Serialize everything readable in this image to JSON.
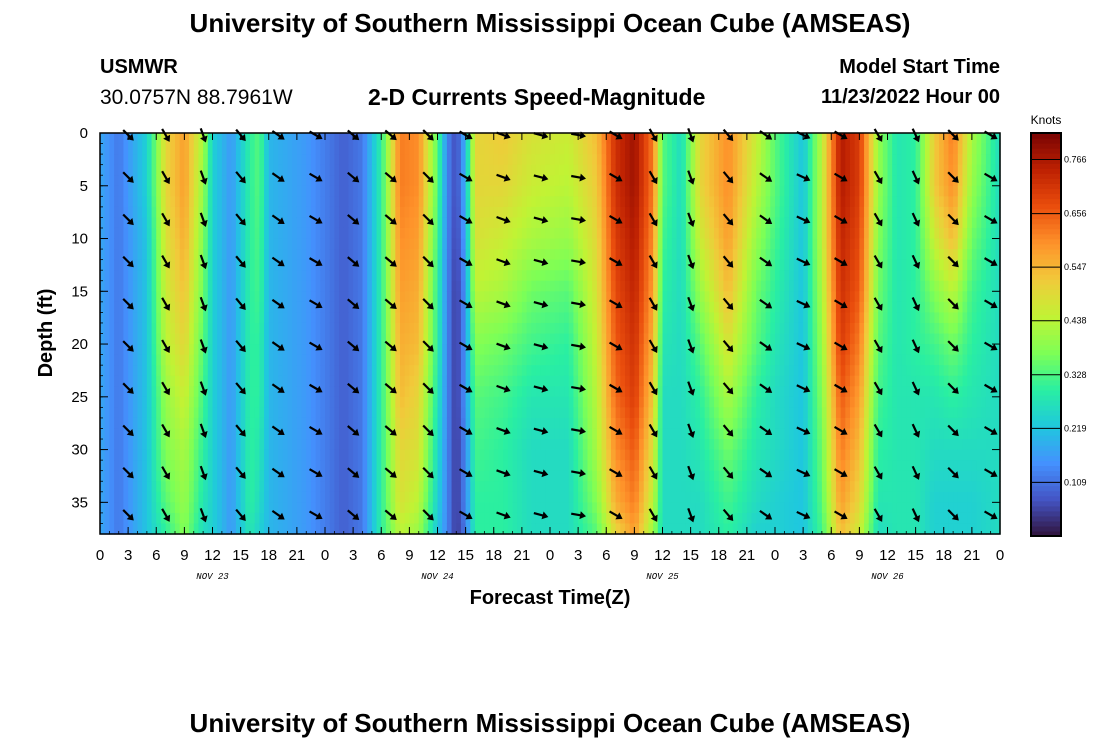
{
  "header": {
    "title": "University of Southern Mississippi Ocean Cube (AMSEAS)",
    "station": "USMWR",
    "coords": "30.0757N  88.7961W",
    "product": "2-D Currents Speed-Magnitude",
    "start_label": "Model Start Time",
    "start_value": "11/23/2022 Hour 00"
  },
  "footer": {
    "title": "University of Southern Mississippi Ocean Cube (AMSEAS)"
  },
  "colors": {
    "scale": [
      "#30123b",
      "#4454c4",
      "#4491fe",
      "#1fc8de",
      "#29efa2",
      "#7dff56",
      "#c1f334",
      "#f1ca3a",
      "#fe922a",
      "#ea4e0d",
      "#be2102",
      "#7a0403"
    ]
  },
  "chart_data": {
    "type": "heatmap",
    "title": "2-D Currents Speed-Magnitude",
    "xlabel": "Forecast Time(Z)",
    "ylabel": "Depth (ft)",
    "units": "Knots",
    "xlim": [
      0,
      96
    ],
    "ylim": [
      38,
      0
    ],
    "x_tick_labels": [
      "0",
      "3",
      "6",
      "9",
      "12",
      "15",
      "18",
      "21",
      "0",
      "3",
      "6",
      "9",
      "12",
      "15",
      "18",
      "21",
      "0",
      "3",
      "6",
      "9",
      "12",
      "15",
      "18",
      "21",
      "0",
      "3",
      "6",
      "9",
      "12",
      "15",
      "18",
      "21",
      "0"
    ],
    "y_ticks": [
      0,
      5,
      10,
      15,
      20,
      25,
      30,
      35
    ],
    "day_labels": [
      {
        "hour": 12,
        "label": "NOV 23"
      },
      {
        "hour": 36,
        "label": "NOV 24"
      },
      {
        "hour": 60,
        "label": "NOV 25"
      },
      {
        "hour": 84,
        "label": "NOV 26"
      }
    ],
    "colorbar": {
      "min": 0.0,
      "max": 0.82,
      "ticks": [
        "0.766",
        "0.656",
        "0.547",
        "0.438",
        "0.328",
        "0.219",
        "0.109"
      ]
    },
    "depths_ft": [
      0,
      5,
      10,
      15,
      20,
      25,
      30,
      35,
      38
    ],
    "speed_profile": [
      {
        "hour": 0,
        "speed": [
          0.18,
          0.18,
          0.18,
          0.18,
          0.18,
          0.18,
          0.18,
          0.18,
          0.18
        ]
      },
      {
        "hour": 2,
        "speed": [
          0.12,
          0.12,
          0.12,
          0.12,
          0.12,
          0.12,
          0.12,
          0.12,
          0.12
        ]
      },
      {
        "hour": 5,
        "speed": [
          0.24,
          0.24,
          0.22,
          0.22,
          0.22,
          0.22,
          0.22,
          0.22,
          0.22
        ]
      },
      {
        "hour": 7,
        "speed": [
          0.5,
          0.5,
          0.48,
          0.46,
          0.44,
          0.4,
          0.38,
          0.34,
          0.3
        ]
      },
      {
        "hour": 9,
        "speed": [
          0.58,
          0.58,
          0.56,
          0.53,
          0.5,
          0.46,
          0.42,
          0.4,
          0.38
        ]
      },
      {
        "hour": 11,
        "speed": [
          0.42,
          0.4,
          0.38,
          0.36,
          0.34,
          0.32,
          0.3,
          0.28,
          0.26
        ]
      },
      {
        "hour": 12,
        "speed": [
          0.24,
          0.24,
          0.24,
          0.24,
          0.24,
          0.24,
          0.24,
          0.24,
          0.24
        ]
      },
      {
        "hour": 14,
        "speed": [
          0.16,
          0.16,
          0.16,
          0.16,
          0.16,
          0.16,
          0.16,
          0.16,
          0.16
        ]
      },
      {
        "hour": 16,
        "speed": [
          0.3,
          0.3,
          0.3,
          0.3,
          0.3,
          0.3,
          0.3,
          0.3,
          0.28
        ]
      },
      {
        "hour": 17,
        "speed": [
          0.34,
          0.34,
          0.33,
          0.32,
          0.3,
          0.3,
          0.28,
          0.26,
          0.24
        ]
      },
      {
        "hour": 18,
        "speed": [
          0.2,
          0.2,
          0.2,
          0.2,
          0.2,
          0.2,
          0.2,
          0.2,
          0.2
        ]
      },
      {
        "hour": 22,
        "speed": [
          0.16,
          0.16,
          0.16,
          0.16,
          0.16,
          0.16,
          0.16,
          0.16,
          0.16
        ]
      },
      {
        "hour": 26,
        "speed": [
          0.09,
          0.09,
          0.09,
          0.09,
          0.09,
          0.09,
          0.09,
          0.09,
          0.09
        ]
      },
      {
        "hour": 28,
        "speed": [
          0.12,
          0.12,
          0.12,
          0.12,
          0.12,
          0.12,
          0.12,
          0.12,
          0.12
        ]
      },
      {
        "hour": 30,
        "speed": [
          0.3,
          0.3,
          0.3,
          0.3,
          0.3,
          0.3,
          0.3,
          0.3,
          0.3
        ]
      },
      {
        "hour": 32,
        "speed": [
          0.62,
          0.62,
          0.6,
          0.58,
          0.56,
          0.54,
          0.5,
          0.48,
          0.44
        ]
      },
      {
        "hour": 34,
        "speed": [
          0.6,
          0.6,
          0.58,
          0.56,
          0.54,
          0.5,
          0.48,
          0.44,
          0.4
        ]
      },
      {
        "hour": 36,
        "speed": [
          0.34,
          0.34,
          0.32,
          0.3,
          0.3,
          0.28,
          0.26,
          0.24,
          0.22
        ]
      },
      {
        "hour": 37,
        "speed": [
          0.14,
          0.14,
          0.14,
          0.14,
          0.14,
          0.14,
          0.14,
          0.14,
          0.14
        ]
      },
      {
        "hour": 38,
        "speed": [
          0.06,
          0.06,
          0.05,
          0.04,
          0.04,
          0.04,
          0.04,
          0.04,
          0.04
        ]
      },
      {
        "hour": 39,
        "speed": [
          0.2,
          0.2,
          0.18,
          0.16,
          0.16,
          0.16,
          0.14,
          0.14,
          0.12
        ]
      },
      {
        "hour": 40,
        "speed": [
          0.5,
          0.5,
          0.48,
          0.44,
          0.38,
          0.34,
          0.32,
          0.3,
          0.3
        ]
      },
      {
        "hour": 43,
        "speed": [
          0.52,
          0.5,
          0.46,
          0.42,
          0.36,
          0.32,
          0.3,
          0.3,
          0.3
        ]
      },
      {
        "hour": 46,
        "speed": [
          0.48,
          0.46,
          0.42,
          0.36,
          0.32,
          0.28,
          0.26,
          0.26,
          0.26
        ]
      },
      {
        "hour": 50,
        "speed": [
          0.46,
          0.44,
          0.4,
          0.34,
          0.3,
          0.28,
          0.26,
          0.26,
          0.26
        ]
      },
      {
        "hour": 53,
        "speed": [
          0.54,
          0.52,
          0.5,
          0.48,
          0.46,
          0.44,
          0.42,
          0.38,
          0.34
        ]
      },
      {
        "hour": 55,
        "speed": [
          0.72,
          0.72,
          0.7,
          0.68,
          0.66,
          0.64,
          0.6,
          0.56,
          0.5
        ]
      },
      {
        "hour": 57,
        "speed": [
          0.78,
          0.78,
          0.76,
          0.74,
          0.72,
          0.7,
          0.66,
          0.62,
          0.58
        ]
      },
      {
        "hour": 59,
        "speed": [
          0.62,
          0.62,
          0.6,
          0.58,
          0.55,
          0.52,
          0.48,
          0.44,
          0.4
        ]
      },
      {
        "hour": 60,
        "speed": [
          0.34,
          0.34,
          0.32,
          0.3,
          0.28,
          0.26,
          0.26,
          0.26,
          0.26
        ]
      },
      {
        "hour": 62,
        "speed": [
          0.26,
          0.26,
          0.26,
          0.26,
          0.26,
          0.26,
          0.26,
          0.26,
          0.26
        ]
      },
      {
        "hour": 64,
        "speed": [
          0.5,
          0.5,
          0.46,
          0.4,
          0.34,
          0.3,
          0.28,
          0.26,
          0.26
        ]
      },
      {
        "hour": 67,
        "speed": [
          0.6,
          0.6,
          0.58,
          0.54,
          0.48,
          0.42,
          0.36,
          0.32,
          0.3
        ]
      },
      {
        "hour": 70,
        "speed": [
          0.46,
          0.44,
          0.4,
          0.36,
          0.34,
          0.3,
          0.28,
          0.26,
          0.24
        ]
      },
      {
        "hour": 72,
        "speed": [
          0.34,
          0.34,
          0.32,
          0.3,
          0.28,
          0.26,
          0.26,
          0.24,
          0.24
        ]
      },
      {
        "hour": 75,
        "speed": [
          0.22,
          0.22,
          0.22,
          0.22,
          0.22,
          0.22,
          0.22,
          0.22,
          0.22
        ]
      },
      {
        "hour": 77,
        "speed": [
          0.44,
          0.44,
          0.44,
          0.42,
          0.4,
          0.38,
          0.36,
          0.34,
          0.32
        ]
      },
      {
        "hour": 79,
        "speed": [
          0.76,
          0.76,
          0.74,
          0.72,
          0.7,
          0.66,
          0.62,
          0.58,
          0.54
        ]
      },
      {
        "hour": 81,
        "speed": [
          0.7,
          0.7,
          0.68,
          0.66,
          0.62,
          0.58,
          0.54,
          0.5,
          0.46
        ]
      },
      {
        "hour": 83,
        "speed": [
          0.4,
          0.4,
          0.38,
          0.36,
          0.34,
          0.32,
          0.3,
          0.28,
          0.26
        ]
      },
      {
        "hour": 85,
        "speed": [
          0.28,
          0.28,
          0.28,
          0.28,
          0.28,
          0.28,
          0.28,
          0.28,
          0.28
        ]
      },
      {
        "hour": 87,
        "speed": [
          0.3,
          0.3,
          0.3,
          0.3,
          0.3,
          0.28,
          0.28,
          0.28,
          0.28
        ]
      },
      {
        "hour": 89,
        "speed": [
          0.52,
          0.52,
          0.46,
          0.38,
          0.32,
          0.28,
          0.26,
          0.24,
          0.24
        ]
      },
      {
        "hour": 91,
        "speed": [
          0.62,
          0.6,
          0.54,
          0.44,
          0.36,
          0.3,
          0.26,
          0.24,
          0.24
        ]
      },
      {
        "hour": 93,
        "speed": [
          0.42,
          0.4,
          0.36,
          0.32,
          0.3,
          0.28,
          0.26,
          0.24,
          0.24
        ]
      },
      {
        "hour": 96,
        "speed": [
          0.26,
          0.26,
          0.26,
          0.26,
          0.26,
          0.26,
          0.26,
          0.26,
          0.26
        ]
      }
    ],
    "vectors": {
      "x_hours": [
        3,
        7,
        11,
        15,
        19,
        23,
        27,
        31,
        35,
        39,
        43,
        47,
        51,
        55,
        59,
        63,
        67,
        71,
        75,
        79,
        83,
        87,
        91,
        95
      ],
      "depths_ft": [
        0,
        4,
        8,
        12,
        16,
        20,
        24,
        28,
        32,
        36
      ],
      "angle_by_column_deg": [
        135,
        150,
        160,
        140,
        125,
        120,
        130,
        130,
        135,
        120,
        110,
        105,
        100,
        120,
        150,
        160,
        140,
        125,
        115,
        120,
        150,
        155,
        135,
        120
      ]
    }
  }
}
